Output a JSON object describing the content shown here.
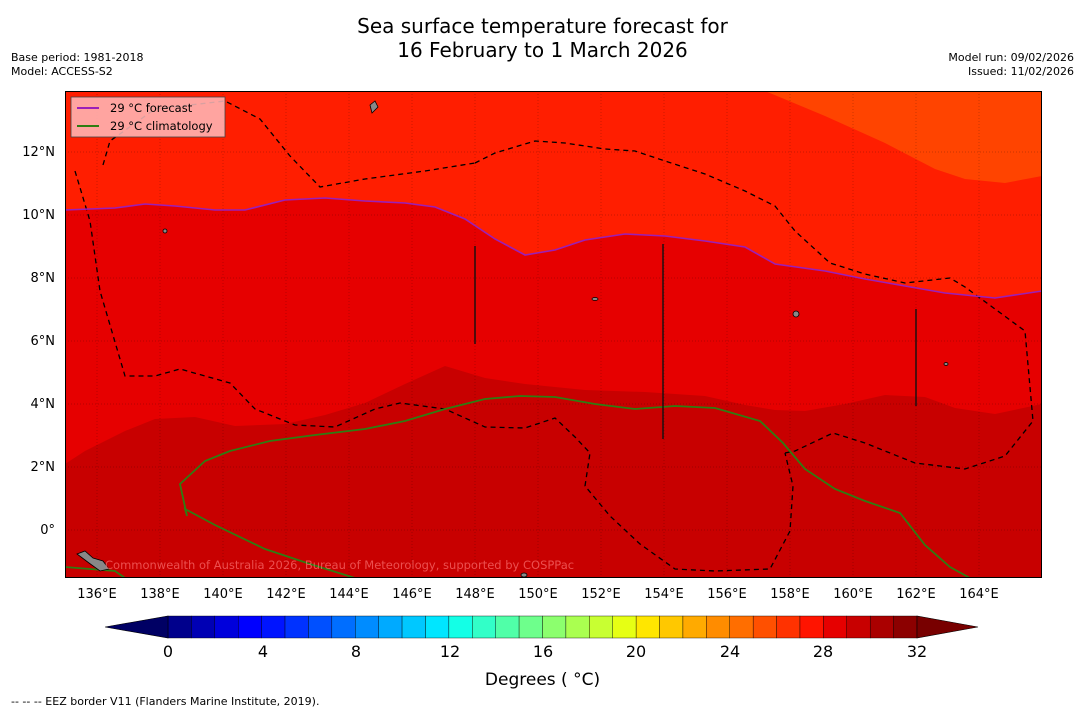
{
  "header": {
    "title_line1": "Sea surface temperature forecast for",
    "title_line2": "16 February to 1 March 2026",
    "base_period": "Base period: 1981-2018",
    "model": "Model: ACCESS-S2",
    "model_run": "Model run: 09/02/2026",
    "issued": "Issued: 11/02/2026"
  },
  "map": {
    "legend": {
      "forecast_label": "29 °C  forecast",
      "forecast_color": "#9b1fb8",
      "climatology_label": "29 °C  climatology",
      "climatology_color": "#2e7d12"
    },
    "lat_labels": [
      "12°N",
      "10°N",
      "8°N",
      "6°N",
      "4°N",
      "2°N",
      "0°"
    ],
    "lon_labels": [
      "136°E",
      "138°E",
      "140°E",
      "142°E",
      "144°E",
      "146°E",
      "148°E",
      "150°E",
      "152°E",
      "154°E",
      "156°E",
      "158°E",
      "160°E",
      "162°E",
      "164°E"
    ],
    "watermark": "Commonwealth of Australia 2026, Bureau of Meteorology, supported by COSPPac",
    "zone_colors": {
      "hot_29_30": "#e60000",
      "hot_30_31": "#c80000",
      "warm_28_29": "#ff1e00",
      "warm_27_28": "#ff4400"
    }
  },
  "colorbar": {
    "ticks": [
      "0",
      "4",
      "8",
      "12",
      "16",
      "20",
      "24",
      "28",
      "32"
    ],
    "label": "Degrees ( °C)",
    "colors": [
      "#00008c",
      "#0000b4",
      "#0000dc",
      "#0000ff",
      "#0014ff",
      "#0032ff",
      "#0050ff",
      "#006eff",
      "#008cff",
      "#00aaff",
      "#00c8ff",
      "#00e6ff",
      "#14ffe6",
      "#32ffc8",
      "#50ffa8",
      "#6eff8c",
      "#8cff6e",
      "#aaff50",
      "#c8ff32",
      "#e6ff14",
      "#ffe600",
      "#ffc800",
      "#ffaa00",
      "#ff8c00",
      "#ff6e00",
      "#ff5000",
      "#ff3200",
      "#ff1400",
      "#e60000",
      "#c80000",
      "#aa0000",
      "#8c0000"
    ],
    "under_color": "#000064",
    "over_color": "#780000"
  },
  "footer": {
    "eez_note": "--  --  -- EEZ border V11 (Flanders Marine Institute, 2019)."
  }
}
